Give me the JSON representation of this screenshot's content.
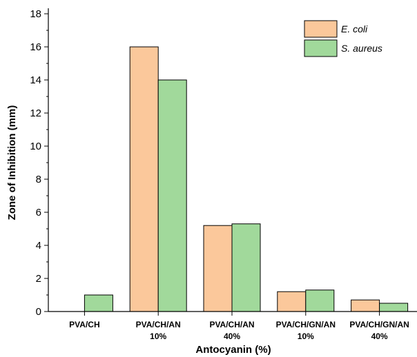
{
  "chart_data": {
    "type": "bar",
    "categories": [
      [
        "PVA/CH",
        ""
      ],
      [
        "PVA/CH/AN",
        "10%"
      ],
      [
        "PVA/CH/AN",
        "40%"
      ],
      [
        "PVA/CH/GN/AN",
        "10%"
      ],
      [
        "PVA/CH/GN/AN",
        "40%"
      ]
    ],
    "series": [
      {
        "name": "E. coli",
        "color": "#fbc89b",
        "values": [
          0,
          16,
          5.2,
          1.2,
          0.7
        ]
      },
      {
        "name": "S. aureus",
        "color": "#a1d99b",
        "values": [
          1,
          14,
          5.3,
          1.3,
          0.5
        ]
      }
    ],
    "xlabel": "Antocyanin (%)",
    "ylabel": "Zone of Inhibition (mm)",
    "ylim": [
      0,
      18
    ],
    "yticks": [
      0,
      2,
      4,
      6,
      8,
      10,
      12,
      14,
      16,
      18
    ],
    "grid": false,
    "legend_position": "top-right"
  }
}
